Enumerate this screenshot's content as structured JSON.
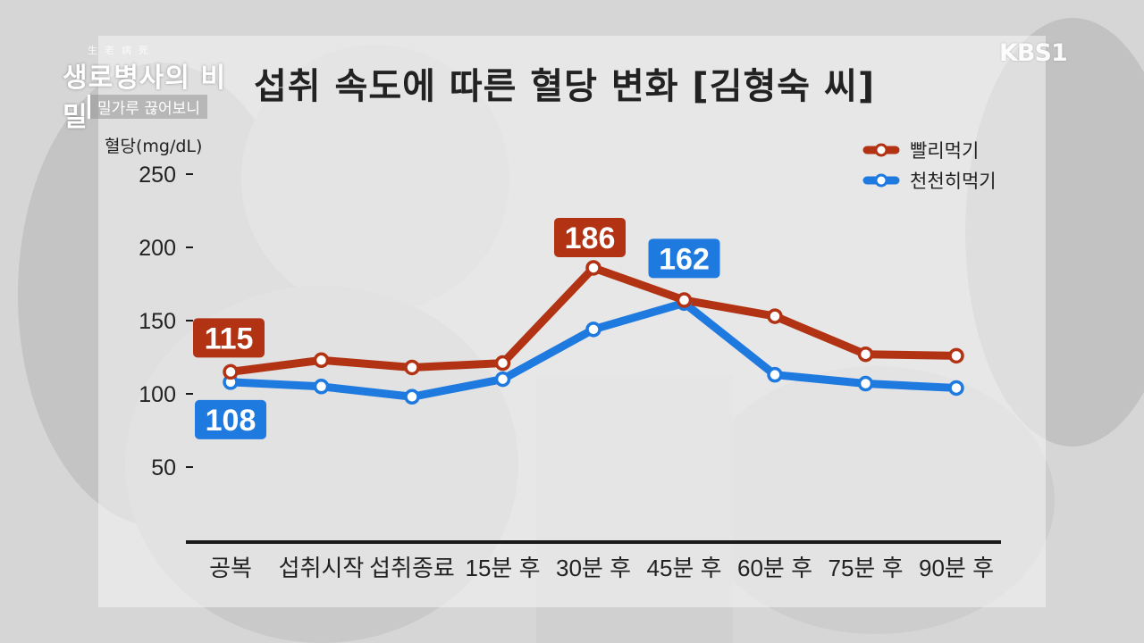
{
  "program": {
    "small_text": "生老病死",
    "title": "생로병사의 비밀",
    "subtitle": "밀가루 끊어보니"
  },
  "channel_logo": "KBS1",
  "colors": {
    "fast": "#b23314",
    "slow": "#1f7ae0",
    "axis": "#1a1a1a",
    "text": "#222222"
  },
  "chart_data": {
    "type": "line",
    "title": "섭취 속도에 따른 혈당 변화 [김형숙 씨]",
    "ylabel": "혈당(mg/dL)",
    "xlabel": "",
    "ylim": [
      50,
      250
    ],
    "yticks": [
      250,
      200,
      150,
      100,
      50
    ],
    "categories": [
      "공복",
      "섭취시작",
      "섭취종료",
      "15분 후",
      "30분 후",
      "45분 후",
      "60분 후",
      "75분 후",
      "90분 후"
    ],
    "series": [
      {
        "name": "빨리먹기",
        "color": "#b23314",
        "values": [
          115,
          123,
          118,
          121,
          186,
          164,
          153,
          127,
          126
        ]
      },
      {
        "name": "천천히먹기",
        "color": "#1f7ae0",
        "values": [
          108,
          105,
          98,
          110,
          144,
          162,
          113,
          107,
          104
        ]
      }
    ],
    "annotations": [
      {
        "text": "115",
        "series": 0,
        "index": 0
      },
      {
        "text": "108",
        "series": 1,
        "index": 0
      },
      {
        "text": "186",
        "series": 0,
        "index": 4
      },
      {
        "text": "162",
        "series": 1,
        "index": 5
      }
    ],
    "legend_position": "top-right",
    "grid": false
  }
}
